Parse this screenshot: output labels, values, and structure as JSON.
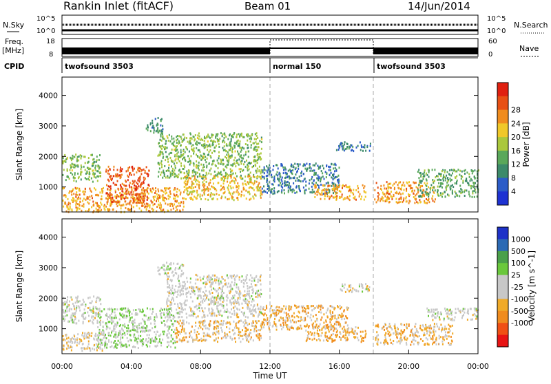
{
  "header": {
    "station": "Rankin Inlet (fitACF)",
    "beam": "Beam 01",
    "date": "14/Jun/2014"
  },
  "top_panels": {
    "nsky_label": "N.Sky",
    "nsky_ticks": [
      "10^5",
      "10^0"
    ],
    "nsearch_label": "N.Search",
    "nsearch_ticks": [
      "10^5",
      "10^0"
    ],
    "freq_label_1": "Freq.",
    "freq_label_2": "[MHz]",
    "freq_ticks": [
      "18",
      "8"
    ],
    "nave_label": "Nave",
    "nave_ticks": [
      "60",
      "0"
    ],
    "cpid_label": "CPID",
    "cpid_segments": [
      {
        "label": "twofsound 3503",
        "start_hour": 0,
        "end_hour": 12
      },
      {
        "label": "normal 150",
        "start_hour": 12,
        "end_hour": 18
      },
      {
        "label": "twofsound 3503",
        "start_hour": 18,
        "end_hour": 24
      }
    ]
  },
  "axes": {
    "xlabel": "Time UT",
    "xticks": [
      "00:00",
      "04:00",
      "08:00",
      "12:00",
      "16:00",
      "20:00",
      "00:00"
    ],
    "ylabel": "Slant Range [km]",
    "yticks": [
      "1000",
      "2000",
      "3000",
      "4000"
    ]
  },
  "colors": {
    "power": [
      "#1e32d2",
      "#2c5cc8",
      "#3c8a6a",
      "#5aa85a",
      "#aac83c",
      "#f0c828",
      "#f08c1e",
      "#e85014",
      "#e02010"
    ],
    "velocity": [
      "#e81414",
      "#f05014",
      "#f08c1e",
      "#f0aa28",
      "#c8c8c8",
      "#c8c8c8",
      "#6ac83c",
      "#4aa04a",
      "#2c6ab4",
      "#1e32c8"
    ]
  },
  "chart_data": [
    {
      "type": "heatmap",
      "title": "",
      "quantity": "Power",
      "colorbar_label": "Power [dB]",
      "colorbar_ticks": [
        "4",
        "8",
        "12",
        "16",
        "20",
        "24",
        "28"
      ],
      "clim": [
        0,
        32
      ],
      "xlabel": "",
      "ylabel": "Slant Range [km]",
      "xlim_hours": [
        0,
        24
      ],
      "ylim_km": [
        180,
        4600
      ],
      "regions": [
        {
          "start_hour": 0.0,
          "end_hour": 2.2,
          "range_min_km": 1200,
          "range_max_km": 2100,
          "value": 14
        },
        {
          "start_hour": 0.0,
          "end_hour": 7.0,
          "range_min_km": 200,
          "range_max_km": 1000,
          "value": 22
        },
        {
          "start_hour": 2.5,
          "end_hour": 5.0,
          "range_min_km": 500,
          "range_max_km": 1700,
          "value": 26
        },
        {
          "start_hour": 4.8,
          "end_hour": 5.8,
          "range_min_km": 2800,
          "range_max_km": 3300,
          "value": 10
        },
        {
          "start_hour": 5.5,
          "end_hour": 11.5,
          "range_min_km": 1300,
          "range_max_km": 2800,
          "value": 14
        },
        {
          "start_hour": 7.0,
          "end_hour": 11.5,
          "range_min_km": 600,
          "range_max_km": 1400,
          "value": 20
        },
        {
          "start_hour": 11.5,
          "end_hour": 16.0,
          "range_min_km": 800,
          "range_max_km": 1800,
          "value": 8
        },
        {
          "start_hour": 14.5,
          "end_hour": 17.5,
          "range_min_km": 600,
          "range_max_km": 1100,
          "value": 22
        },
        {
          "start_hour": 15.8,
          "end_hour": 17.8,
          "range_min_km": 2200,
          "range_max_km": 2500,
          "value": 8
        },
        {
          "start_hour": 18.0,
          "end_hour": 21.5,
          "range_min_km": 500,
          "range_max_km": 1200,
          "value": 22
        },
        {
          "start_hour": 20.5,
          "end_hour": 24.0,
          "range_min_km": 700,
          "range_max_km": 1600,
          "value": 12
        }
      ]
    },
    {
      "type": "heatmap",
      "title": "",
      "quantity": "Velocity",
      "colorbar_label": "Velocity [m s^-1]",
      "colorbar_ticks": [
        "1000",
        "500",
        "100",
        "25",
        "-25",
        "-100",
        "-500",
        "-1000"
      ],
      "clim": [
        -1000,
        1000
      ],
      "xlabel": "Time UT",
      "ylabel": "Slant Range [km]",
      "xlim_hours": [
        0,
        24
      ],
      "ylim_km": [
        180,
        4600
      ],
      "regions": [
        {
          "start_hour": 0.0,
          "end_hour": 2.2,
          "range_min_km": 1200,
          "range_max_km": 2100,
          "value": 0
        },
        {
          "start_hour": 0.0,
          "end_hour": 2.5,
          "range_min_km": 300,
          "range_max_km": 900,
          "value": -150
        },
        {
          "start_hour": 2.0,
          "end_hour": 6.5,
          "range_min_km": 400,
          "range_max_km": 1700,
          "value": 150
        },
        {
          "start_hour": 5.5,
          "end_hour": 7.0,
          "range_min_km": 2800,
          "range_max_km": 3200,
          "value": 0
        },
        {
          "start_hour": 6.0,
          "end_hour": 11.5,
          "range_min_km": 1400,
          "range_max_km": 2800,
          "value": 0
        },
        {
          "start_hour": 6.5,
          "end_hour": 11.5,
          "range_min_km": 600,
          "range_max_km": 1300,
          "value": -250
        },
        {
          "start_hour": 11.5,
          "end_hour": 16.5,
          "range_min_km": 1000,
          "range_max_km": 1800,
          "value": -300
        },
        {
          "start_hour": 14.0,
          "end_hour": 17.5,
          "range_min_km": 600,
          "range_max_km": 1100,
          "value": -300
        },
        {
          "start_hour": 16.0,
          "end_hour": 17.8,
          "range_min_km": 2200,
          "range_max_km": 2500,
          "value": 0
        },
        {
          "start_hour": 18.0,
          "end_hour": 22.5,
          "range_min_km": 500,
          "range_max_km": 1200,
          "value": -250
        },
        {
          "start_hour": 21.0,
          "end_hour": 24.0,
          "range_min_km": 1300,
          "range_max_km": 1700,
          "value": 0
        }
      ]
    }
  ]
}
